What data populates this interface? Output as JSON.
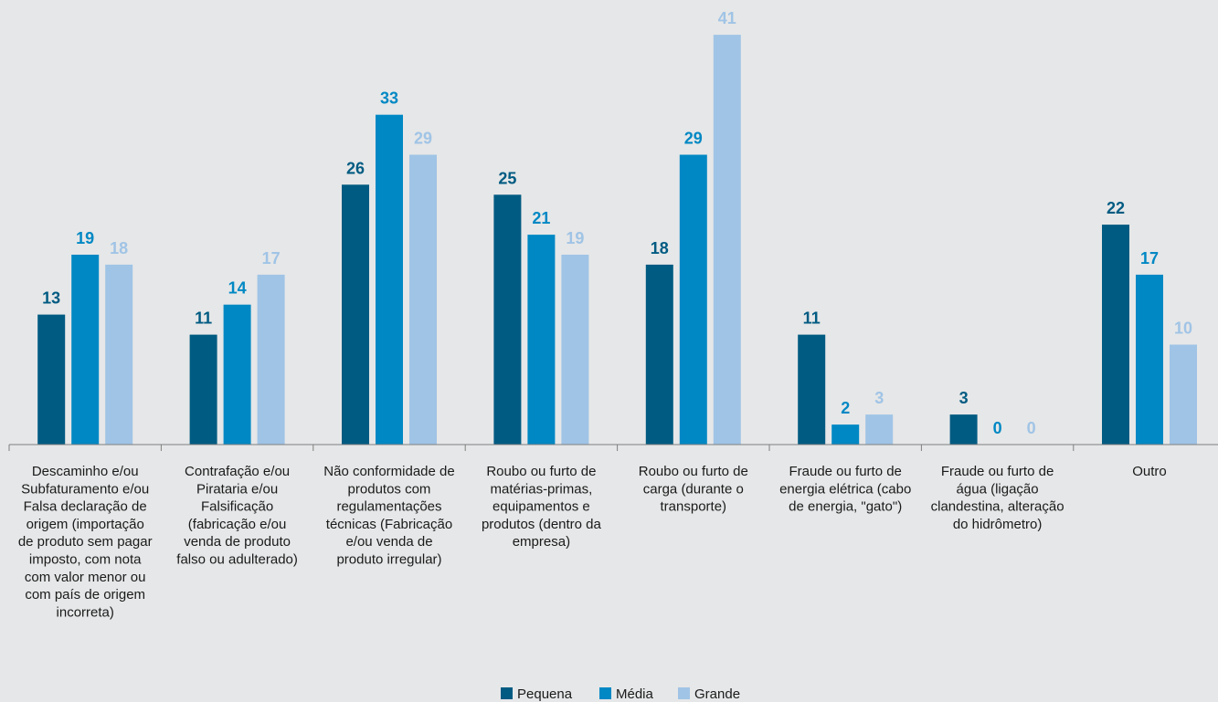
{
  "chart_data": {
    "type": "bar",
    "categories": [
      [
        "Descaminho e/ou",
        "Subfaturamento e/ou",
        "Falsa declaração de",
        "origem (importação",
        "de produto sem pagar",
        "imposto, com nota",
        "com valor menor ou",
        "com país de origem",
        "incorreta)"
      ],
      [
        "Contrafação e/ou",
        "Pirataria e/ou",
        "Falsificação",
        "(fabricação e/ou",
        "venda de produto",
        "falso ou adulterado)"
      ],
      [
        "Não conformidade de",
        "produtos com",
        "regulamentações",
        "técnicas (Fabricação",
        "e/ou venda de",
        "produto irregular)"
      ],
      [
        "Roubo ou furto de",
        "matérias-primas,",
        "equipamentos e",
        "produtos (dentro da",
        "empresa)"
      ],
      [
        "Roubo ou furto de",
        "carga (durante o",
        "transporte)"
      ],
      [
        "Fraude ou furto de",
        "energia elétrica (cabo",
        "de energia, \"gato\")"
      ],
      [
        "Fraude ou furto de",
        "água (ligação",
        "clandestina, alteração",
        "do hidrômetro)"
      ],
      [
        "Outro"
      ]
    ],
    "series": [
      {
        "name": "Pequena",
        "values": [
          13,
          11,
          26,
          25,
          18,
          11,
          3,
          22
        ]
      },
      {
        "name": "Média",
        "values": [
          19,
          14,
          33,
          21,
          29,
          2,
          0,
          17
        ]
      },
      {
        "name": "Grande",
        "values": [
          18,
          17,
          29,
          19,
          41,
          3,
          0,
          10
        ]
      }
    ],
    "colors": [
      "#005b82",
      "#0088c4",
      "#a0c4e6"
    ],
    "ylim": [
      0,
      41
    ],
    "grid": false,
    "legend_position": "bottom-center"
  }
}
